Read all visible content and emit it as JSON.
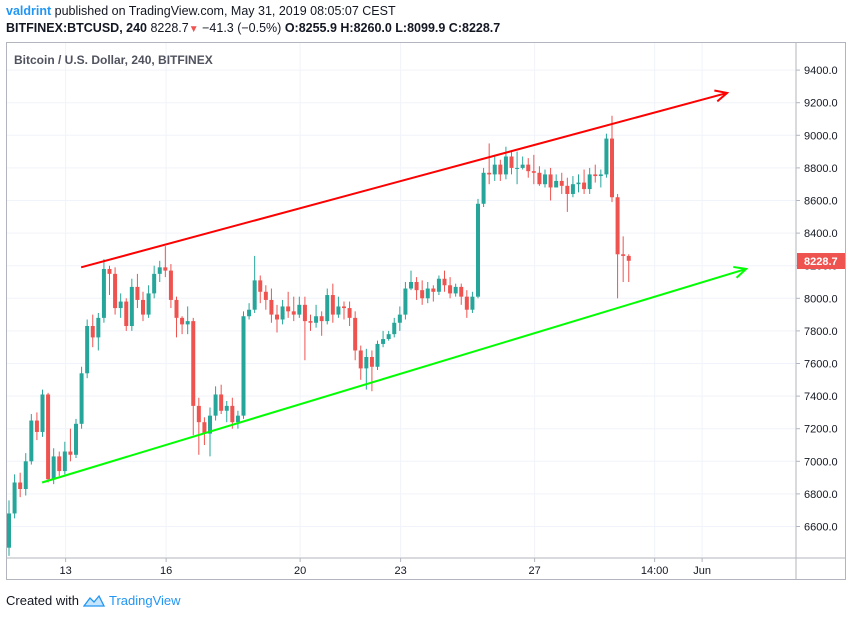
{
  "header": {
    "username": "valdrint",
    "published_text": "published on TradingView.com, May 31, 2019 08:05:07 CEST",
    "symbol": "BITFINEX:BTCUSD, 240",
    "last": "8228.7",
    "change": "−41.3 (−0.5%)",
    "ohlc": "O:8255.9 H:8260.0 L:8099.9 C:8228.7",
    "down_arrow_icon": "triangle-down-icon"
  },
  "footer": {
    "created_with": "Created with",
    "brand": "TradingView",
    "logo_icon": "tradingview-logo-icon"
  },
  "colors": {
    "up": "#26a69a",
    "down": "#ef5350",
    "resistance": "#ff0000",
    "support": "#00ff00",
    "username": "#2196f3"
  },
  "chart_data": {
    "type": "candlestick",
    "title": "Bitcoin / U.S. Dollar, 240, BITFINEX",
    "ylim": [
      6400,
      9600
    ],
    "y_ticks": [
      "6600.0",
      "6800.0",
      "7000.0",
      "7200.0",
      "7400.0",
      "7600.0",
      "7800.0",
      "8000.0",
      "8200.0",
      "8400.0",
      "8600.0",
      "8800.0",
      "9000.0",
      "9200.0",
      "9400.0"
    ],
    "x_ticks": [
      "13",
      "16",
      "20",
      "23",
      "27",
      "14:00",
      "Jun"
    ],
    "last_price_label": "8228.7",
    "grid": true,
    "candles": [
      [
        6470,
        6680,
        6420,
        6760
      ],
      [
        6680,
        6870,
        6650,
        6920
      ],
      [
        6870,
        6830,
        6780,
        6930
      ],
      [
        6830,
        7000,
        6790,
        7050
      ],
      [
        7000,
        7250,
        6980,
        7290
      ],
      [
        7250,
        7180,
        7130,
        7300
      ],
      [
        7180,
        7410,
        7150,
        7440
      ],
      [
        7410,
        6890,
        6870,
        7420
      ],
      [
        6890,
        7030,
        6860,
        7080
      ],
      [
        7030,
        6940,
        6910,
        7060
      ],
      [
        6940,
        7060,
        6920,
        7120
      ],
      [
        7060,
        7040,
        7000,
        7200
      ],
      [
        7040,
        7230,
        7020,
        7260
      ],
      [
        7230,
        7540,
        7200,
        7580
      ],
      [
        7540,
        7830,
        7510,
        7870
      ],
      [
        7830,
        7760,
        7700,
        7900
      ],
      [
        7760,
        7880,
        7680,
        7910
      ],
      [
        7880,
        8180,
        7850,
        8240
      ],
      [
        8180,
        8150,
        8020,
        8200
      ],
      [
        8150,
        7940,
        7900,
        8190
      ],
      [
        7940,
        7980,
        7880,
        8030
      ],
      [
        7980,
        7830,
        7800,
        8000
      ],
      [
        7830,
        8070,
        7800,
        8120
      ],
      [
        8070,
        7990,
        7940,
        8150
      ],
      [
        7990,
        7900,
        7860,
        8040
      ],
      [
        7900,
        8030,
        7880,
        8080
      ],
      [
        8030,
        8150,
        8000,
        8200
      ],
      [
        8150,
        8190,
        8100,
        8230
      ],
      [
        8190,
        8170,
        8130,
        8320
      ],
      [
        8170,
        7990,
        7940,
        8210
      ],
      [
        7990,
        7880,
        7760,
        8010
      ],
      [
        7880,
        7840,
        7780,
        7890
      ],
      [
        7840,
        7860,
        7780,
        7950
      ],
      [
        7860,
        7340,
        7160,
        7880
      ],
      [
        7340,
        7240,
        7040,
        7390
      ],
      [
        7240,
        7170,
        7100,
        7270
      ],
      [
        7170,
        7280,
        7030,
        7330
      ],
      [
        7280,
        7410,
        7250,
        7460
      ],
      [
        7410,
        7310,
        7290,
        7470
      ],
      [
        7310,
        7340,
        7240,
        7370
      ],
      [
        7340,
        7240,
        7200,
        7390
      ],
      [
        7240,
        7280,
        7200,
        7310
      ],
      [
        7280,
        7890,
        7260,
        7920
      ],
      [
        7890,
        7930,
        7870,
        7970
      ],
      [
        7930,
        8110,
        7910,
        8260
      ],
      [
        8110,
        8040,
        7970,
        8140
      ],
      [
        8040,
        7990,
        7930,
        8080
      ],
      [
        7990,
        7900,
        7850,
        8060
      ],
      [
        7900,
        7870,
        7790,
        7960
      ],
      [
        7870,
        7950,
        7840,
        7990
      ],
      [
        7950,
        7920,
        7880,
        8040
      ],
      [
        7920,
        7900,
        7860,
        8010
      ],
      [
        7900,
        7960,
        7880,
        8010
      ],
      [
        7960,
        7860,
        7620,
        8010
      ],
      [
        7860,
        7850,
        7800,
        7900
      ],
      [
        7850,
        7890,
        7820,
        7960
      ],
      [
        7890,
        7860,
        7770,
        7920
      ],
      [
        7860,
        8020,
        7840,
        8060
      ],
      [
        8020,
        7900,
        7850,
        8090
      ],
      [
        7900,
        7950,
        7880,
        8010
      ],
      [
        7950,
        7940,
        7870,
        7980
      ],
      [
        7940,
        7880,
        7830,
        7980
      ],
      [
        7880,
        7680,
        7620,
        7920
      ],
      [
        7680,
        7570,
        7500,
        7710
      ],
      [
        7570,
        7640,
        7440,
        7690
      ],
      [
        7640,
        7580,
        7430,
        7680
      ],
      [
        7580,
        7720,
        7560,
        7740
      ],
      [
        7720,
        7750,
        7700,
        7800
      ],
      [
        7750,
        7780,
        7740,
        7800
      ],
      [
        7780,
        7850,
        7760,
        7880
      ],
      [
        7850,
        7900,
        7800,
        7950
      ],
      [
        7900,
        8060,
        7870,
        8100
      ],
      [
        8060,
        8100,
        8050,
        8170
      ],
      [
        8100,
        8050,
        7990,
        8130
      ],
      [
        8050,
        8000,
        7960,
        8110
      ],
      [
        8000,
        8060,
        7970,
        8100
      ],
      [
        8060,
        8040,
        7980,
        8080
      ],
      [
        8040,
        8120,
        8020,
        8140
      ],
      [
        8120,
        8080,
        8040,
        8170
      ],
      [
        8080,
        8030,
        8000,
        8130
      ],
      [
        8030,
        8070,
        8010,
        8090
      ],
      [
        8070,
        8010,
        7960,
        8090
      ],
      [
        8010,
        7930,
        7880,
        8050
      ],
      [
        7930,
        8010,
        7910,
        8040
      ],
      [
        8010,
        8580,
        8000,
        8610
      ],
      [
        8580,
        8770,
        8560,
        8800
      ],
      [
        8770,
        8760,
        8700,
        8950
      ],
      [
        8760,
        8820,
        8720,
        8870
      ],
      [
        8820,
        8760,
        8720,
        8850
      ],
      [
        8760,
        8870,
        8730,
        8930
      ],
      [
        8870,
        8800,
        8760,
        8900
      ],
      [
        8800,
        8800,
        8700,
        8900
      ],
      [
        8800,
        8820,
        8790,
        8870
      ],
      [
        8820,
        8780,
        8740,
        8860
      ],
      [
        8780,
        8770,
        8700,
        8880
      ],
      [
        8770,
        8700,
        8690,
        8810
      ],
      [
        8700,
        8760,
        8680,
        8790
      ],
      [
        8760,
        8680,
        8600,
        8800
      ],
      [
        8680,
        8720,
        8680,
        8760
      ],
      [
        8720,
        8690,
        8640,
        8770
      ],
      [
        8690,
        8640,
        8530,
        8740
      ],
      [
        8640,
        8700,
        8620,
        8750
      ],
      [
        8700,
        8710,
        8650,
        8760
      ],
      [
        8710,
        8670,
        8640,
        8790
      ],
      [
        8670,
        8760,
        8640,
        8800
      ],
      [
        8760,
        8750,
        8710,
        8820
      ],
      [
        8750,
        8760,
        8680,
        8790
      ],
      [
        8760,
        8980,
        8740,
        9010
      ],
      [
        8980,
        8620,
        8590,
        9120
      ],
      [
        8620,
        8270,
        8000,
        8640
      ],
      [
        8270,
        8260,
        8100,
        8380
      ],
      [
        8260,
        8230,
        8100,
        8270
      ]
    ],
    "trend_lines": [
      {
        "from": [
          "May 14",
          8190
        ],
        "to": [
          "Jun 1",
          9260
        ],
        "color": "#ff0000"
      },
      {
        "from": [
          "May 12",
          6870
        ],
        "to": [
          "Jun 1",
          8180
        ],
        "color": "#00ff00"
      }
    ]
  }
}
